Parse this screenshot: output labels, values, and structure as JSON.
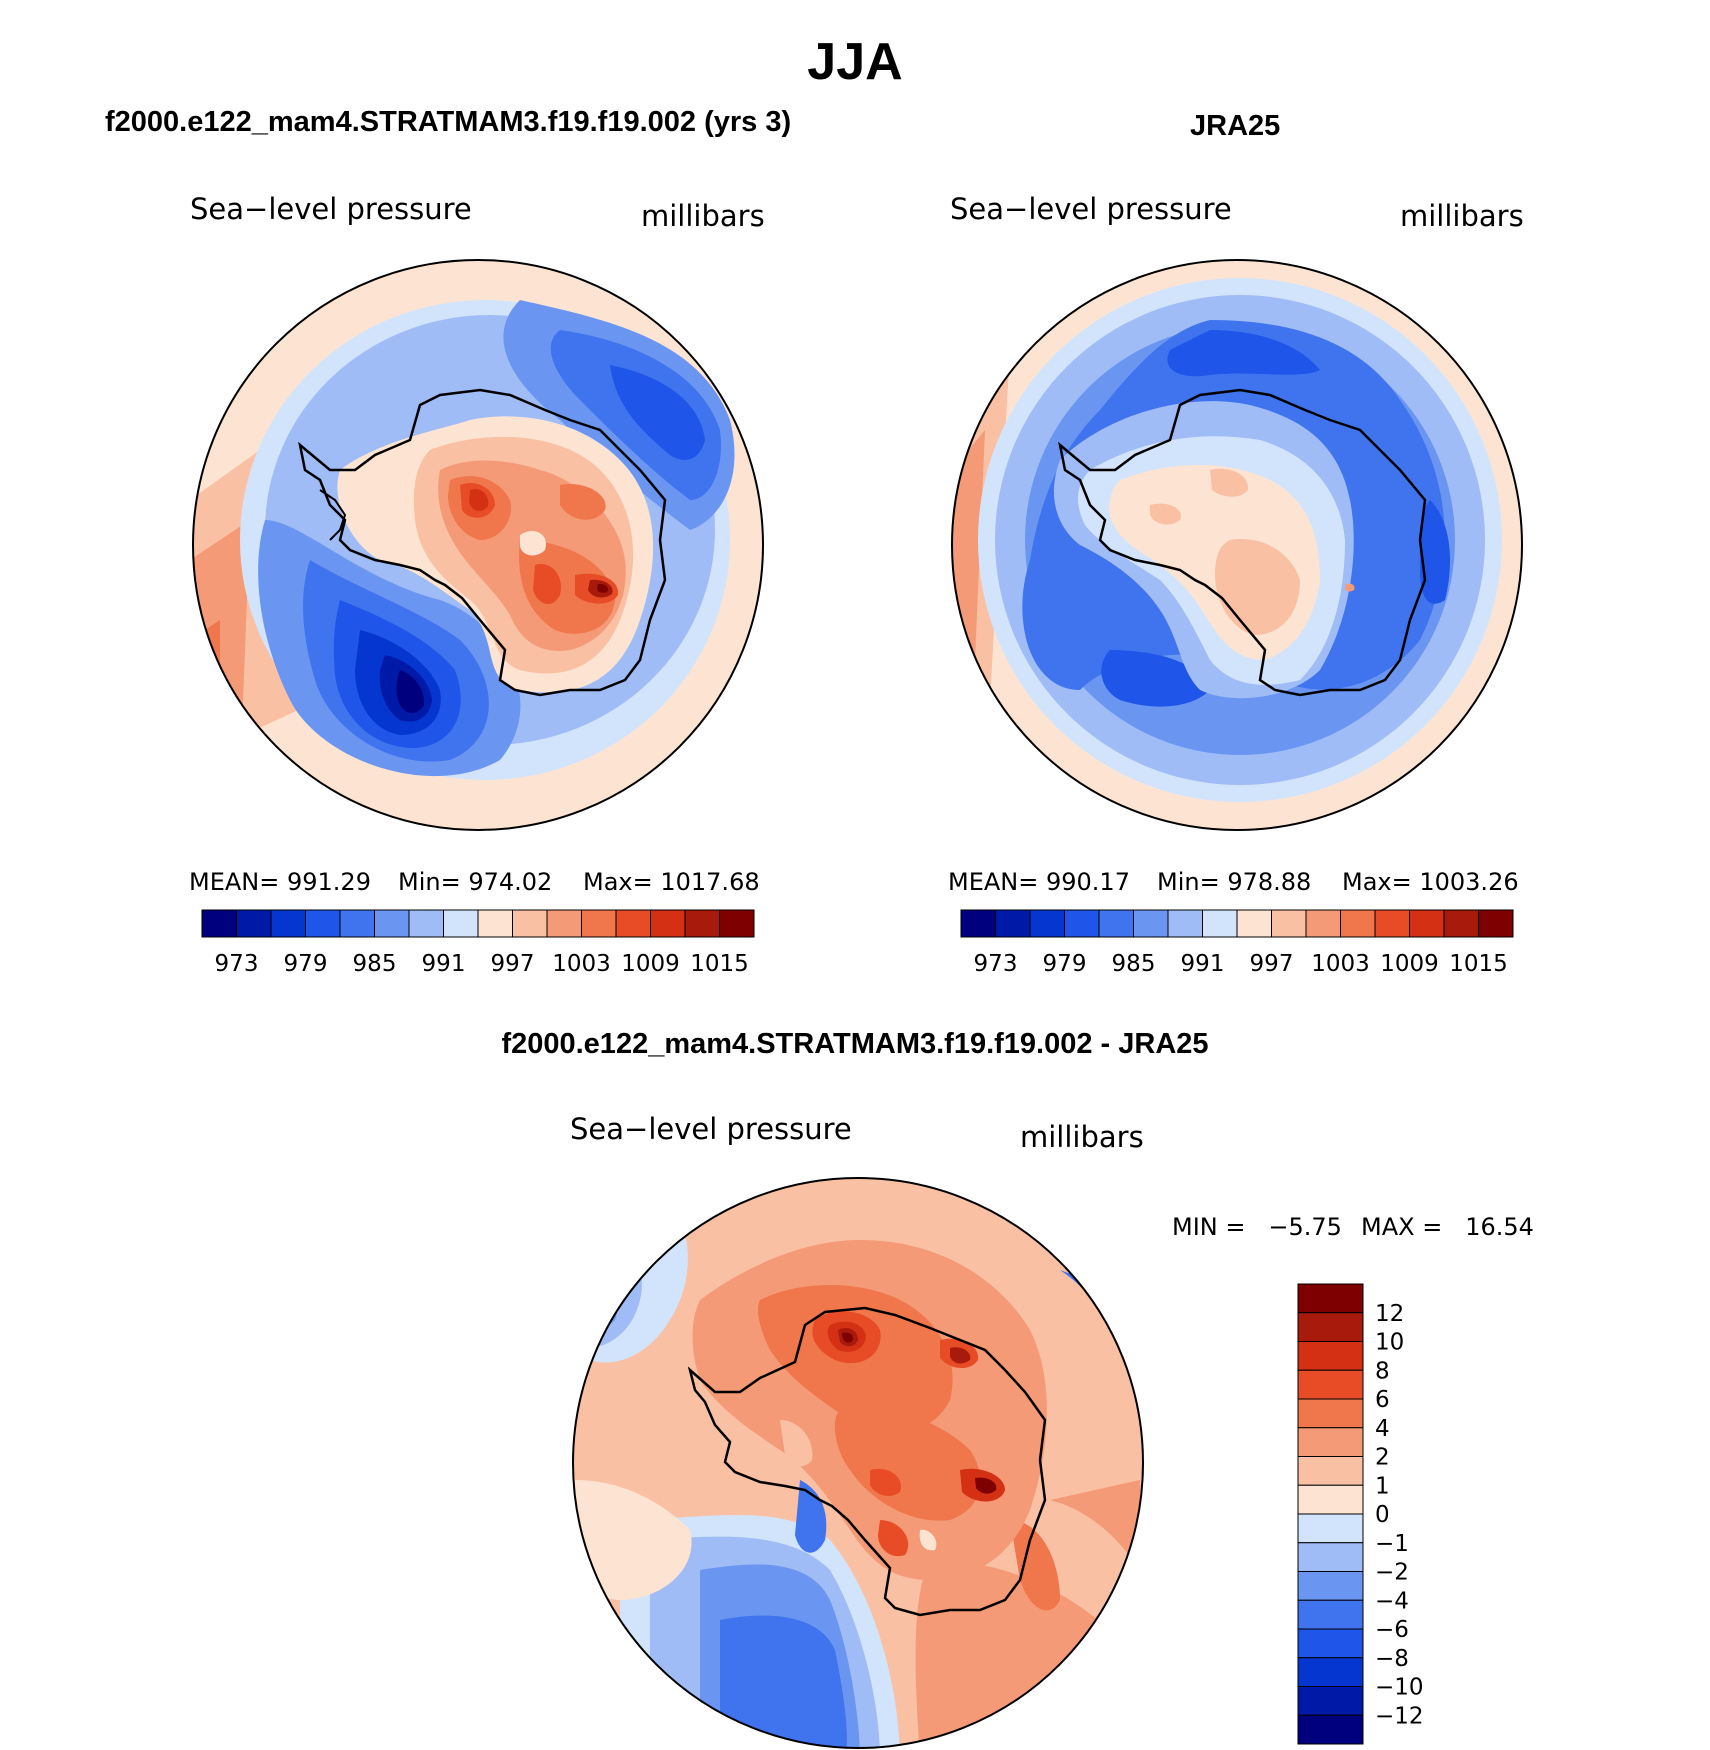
{
  "page_title": "JJA",
  "panels": [
    {
      "title": "f2000.e122_mam4.STRATMAM3.f19.f19.002 (yrs 3)",
      "left_label": "Sea−level pressure",
      "right_label": "millibars",
      "stats": {
        "mean": "MEAN= 991.29",
        "min": "Min= 974.02",
        "max": "Max= 1017.68"
      },
      "colorbar_ticks": [
        "973",
        "979",
        "985",
        "991",
        "997",
        "1003",
        "1009",
        "1015"
      ]
    },
    {
      "title": "JRA25",
      "left_label": "Sea−level pressure",
      "right_label": "millibars",
      "stats": {
        "mean": "MEAN= 990.17",
        "min": "Min= 978.88",
        "max": "Max= 1003.26"
      },
      "colorbar_ticks": [
        "973",
        "979",
        "985",
        "991",
        "997",
        "1003",
        "1009",
        "1015"
      ]
    },
    {
      "title": "f2000.e122_mam4.STRATMAM3.f19.f19.002 - JRA25",
      "left_label": "Sea−level pressure",
      "right_label": "millibars",
      "stats": {
        "min": "MIN =   −5.75",
        "max": "MAX =   16.54"
      },
      "colorbar_ticks": [
        "12",
        "10",
        "8",
        "6",
        "4",
        "2",
        "1",
        "0",
        "−1",
        "−2",
        "−4",
        "−6",
        "−8",
        "−10",
        "−12"
      ]
    }
  ],
  "chart_data": [
    {
      "type": "heatmap",
      "projection": "south-polar-stereographic",
      "title": "f2000.e122_mam4.STRATMAM3.f19.f19.002 (yrs 3)",
      "variable": "Sea-level pressure",
      "units": "millibars",
      "mean": 991.29,
      "min": 974.02,
      "max": 1017.68,
      "levels": [
        973,
        976,
        979,
        982,
        985,
        988,
        991,
        994,
        997,
        1000,
        1003,
        1006,
        1009,
        1012,
        1015
      ],
      "colors": [
        "#00007f",
        "#001aa8",
        "#0536d0",
        "#1f55e8",
        "#3f74ee",
        "#6a96f2",
        "#9fbcf6",
        "#d2e4fb",
        "#fde4d2",
        "#f9c0a4",
        "#f59a76",
        "#f0764c",
        "#e74c27",
        "#d33014",
        "#a81a0b",
        "#7f0000"
      ]
    },
    {
      "type": "heatmap",
      "projection": "south-polar-stereographic",
      "title": "JRA25",
      "variable": "Sea-level pressure",
      "units": "millibars",
      "mean": 990.17,
      "min": 978.88,
      "max": 1003.26,
      "levels": [
        973,
        976,
        979,
        982,
        985,
        988,
        991,
        994,
        997,
        1000,
        1003,
        1006,
        1009,
        1012,
        1015
      ],
      "colors": [
        "#00007f",
        "#001aa8",
        "#0536d0",
        "#1f55e8",
        "#3f74ee",
        "#6a96f2",
        "#9fbcf6",
        "#d2e4fb",
        "#fde4d2",
        "#f9c0a4",
        "#f59a76",
        "#f0764c",
        "#e74c27",
        "#d33014",
        "#a81a0b",
        "#7f0000"
      ]
    },
    {
      "type": "heatmap",
      "projection": "south-polar-stereographic",
      "title": "f2000.e122_mam4.STRATMAM3.f19.f19.002 - JRA25",
      "variable": "Sea-level pressure",
      "units": "millibars",
      "min": -5.75,
      "max": 16.54,
      "levels": [
        -12,
        -10,
        -8,
        -6,
        -4,
        -2,
        -1,
        0,
        1,
        2,
        4,
        6,
        8,
        10,
        12
      ],
      "colors": [
        "#00007f",
        "#001aa8",
        "#0536d0",
        "#1f55e8",
        "#3f74ee",
        "#6a96f2",
        "#9fbcf6",
        "#d2e4fb",
        "#fde4d2",
        "#f9c0a4",
        "#f59a76",
        "#f0764c",
        "#e74c27",
        "#d33014",
        "#a81a0b",
        "#7f0000"
      ]
    }
  ]
}
